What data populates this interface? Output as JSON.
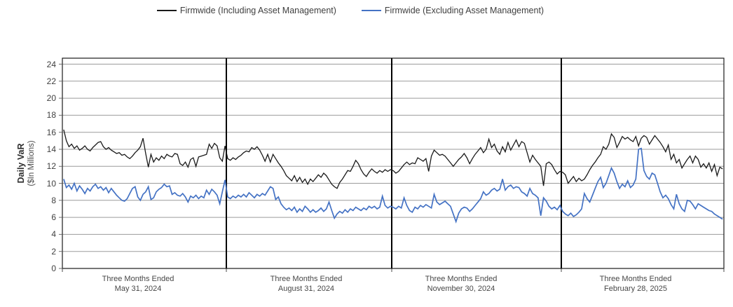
{
  "legend": {
    "items": [
      {
        "label": "Firmwide (Including Asset Management)",
        "color": "#1a1a1a"
      },
      {
        "label": "Firmwide (Excluding Asset Management)",
        "color": "#4472c4"
      }
    ]
  },
  "chart_data": {
    "type": "line",
    "title": "",
    "y_axis_title": "Daily VaR",
    "y_axis_subtitle": "($In Millions)",
    "ylabel": "Daily VaR ($In Millions)",
    "y_ticks": [
      0,
      2,
      4,
      6,
      8,
      10,
      12,
      14,
      16,
      18,
      20,
      22,
      24
    ],
    "ylim": [
      0,
      24.7
    ],
    "grid": true,
    "legend_position": "top-center",
    "colors": {
      "including_am": "#1a1a1a",
      "excluding_am": "#4472c4"
    },
    "quarters": [
      {
        "label_line1": "Three Months Ended",
        "label_line2": "May 31, 2024",
        "including_am": [
          16.3,
          15.0,
          14.3,
          14.6,
          14.1,
          14.4,
          13.9,
          14.1,
          14.4,
          14.0,
          13.8,
          14.2,
          14.5,
          14.8,
          14.9,
          14.3,
          14.0,
          14.2,
          13.9,
          13.7,
          13.5,
          13.6,
          13.3,
          13.4,
          13.1,
          12.9,
          13.2,
          13.6,
          13.9,
          14.3,
          15.3,
          13.5,
          11.9,
          13.4,
          12.5,
          13.0,
          12.7,
          13.2,
          12.9,
          13.4,
          13.2,
          13.1,
          13.5,
          13.4,
          12.3,
          12.1,
          12.5,
          11.9,
          12.8,
          13.0,
          12.0,
          13.1,
          13.2,
          13.3,
          13.4,
          14.6,
          14.1,
          14.7,
          14.4,
          13.0,
          12.6,
          14.4
        ],
        "excluding_am": [
          10.5,
          9.5,
          9.8,
          9.3,
          10.0,
          9.1,
          9.7,
          9.3,
          8.8,
          9.4,
          9.1,
          9.6,
          9.9,
          9.4,
          9.6,
          9.2,
          9.5,
          8.9,
          9.4,
          9.0,
          8.6,
          8.3,
          8.0,
          7.9,
          8.2,
          8.8,
          9.4,
          9.6,
          8.4,
          8.0,
          8.7,
          9.0,
          9.6,
          8.1,
          8.3,
          9.0,
          9.3,
          9.5,
          9.9,
          9.6,
          9.7,
          8.7,
          8.9,
          8.6,
          8.5,
          8.8,
          8.4,
          7.8,
          8.5,
          8.3,
          8.6,
          8.2,
          8.5,
          8.3,
          9.2,
          8.7,
          9.3,
          9.0,
          8.6,
          7.6,
          9.0,
          10.4
        ]
      },
      {
        "label_line1": "Three Months Ended",
        "label_line2": "August 31, 2024",
        "including_am": [
          12.9,
          12.7,
          13.0,
          12.8,
          13.1,
          13.3,
          13.6,
          13.8,
          13.7,
          14.2,
          14.0,
          14.3,
          13.9,
          13.3,
          12.6,
          13.4,
          12.5,
          13.4,
          12.9,
          12.4,
          12.0,
          11.5,
          10.9,
          10.6,
          10.3,
          10.9,
          10.2,
          10.7,
          10.1,
          10.5,
          9.9,
          10.5,
          10.2,
          10.6,
          11.0,
          10.7,
          11.2,
          10.9,
          10.4,
          9.9,
          9.6,
          9.4,
          10.1,
          10.5,
          11.0,
          11.5,
          11.4,
          12.0,
          12.7,
          12.3,
          11.6,
          11.1,
          10.8,
          11.3,
          11.7,
          11.4,
          11.2,
          11.5,
          11.3,
          11.6,
          11.4,
          11.6
        ],
        "excluding_am": [
          8.4,
          8.2,
          8.5,
          8.3,
          8.6,
          8.4,
          8.7,
          8.4,
          8.9,
          8.6,
          8.3,
          8.7,
          8.5,
          8.8,
          8.6,
          9.1,
          9.6,
          9.4,
          8.1,
          8.4,
          7.6,
          7.2,
          6.9,
          7.1,
          6.8,
          7.2,
          6.6,
          7.0,
          6.7,
          7.3,
          7.0,
          6.6,
          6.9,
          6.6,
          6.8,
          7.1,
          6.7,
          7.0,
          7.8,
          6.8,
          5.9,
          6.4,
          6.7,
          6.5,
          6.9,
          6.6,
          7.0,
          6.8,
          7.2,
          7.0,
          6.8,
          7.1,
          6.9,
          7.3,
          7.1,
          7.3,
          7.0,
          7.2,
          8.5,
          7.4,
          7.1,
          7.3
        ]
      },
      {
        "label_line1": "Three Months Ended",
        "label_line2": "November 30, 2024",
        "including_am": [
          11.5,
          11.2,
          11.4,
          11.8,
          12.2,
          12.5,
          12.2,
          12.4,
          12.3,
          13.0,
          12.8,
          12.6,
          12.9,
          11.4,
          13.2,
          13.9,
          13.6,
          13.3,
          13.4,
          13.2,
          12.8,
          12.4,
          12.0,
          12.4,
          12.8,
          13.1,
          13.5,
          13.0,
          12.3,
          12.9,
          13.4,
          13.8,
          14.2,
          13.6,
          14.0,
          15.2,
          14.2,
          14.6,
          13.8,
          13.4,
          14.3,
          13.7,
          14.8,
          13.9,
          14.5,
          15.1,
          14.3,
          14.9,
          14.7,
          13.6,
          12.5,
          13.3,
          12.8,
          12.4,
          12.0,
          9.7,
          12.3,
          12.5,
          12.2,
          11.6,
          11.1,
          11.4
        ],
        "excluding_am": [
          7.2,
          7.0,
          7.3,
          7.1,
          8.3,
          7.4,
          6.8,
          6.6,
          7.2,
          7.0,
          7.4,
          7.2,
          7.5,
          7.3,
          7.1,
          8.7,
          7.8,
          7.5,
          7.7,
          7.9,
          7.6,
          7.3,
          6.4,
          5.5,
          6.5,
          7.0,
          7.2,
          7.1,
          6.7,
          7.0,
          7.4,
          7.8,
          8.2,
          9.0,
          8.6,
          8.8,
          9.2,
          9.4,
          9.1,
          9.3,
          10.5,
          9.2,
          9.6,
          9.8,
          9.4,
          9.6,
          9.5,
          9.0,
          8.8,
          8.5,
          9.4,
          8.8,
          8.6,
          8.3,
          6.2,
          8.3,
          7.9,
          7.3,
          7.0,
          7.2,
          6.9,
          7.4
        ]
      },
      {
        "label_line1": "Three Months Ended",
        "label_line2": "February 28, 2025",
        "including_am": [
          11.3,
          11.0,
          10.0,
          10.4,
          10.8,
          10.2,
          10.6,
          10.3,
          10.5,
          11.0,
          11.6,
          12.1,
          12.5,
          13.0,
          13.4,
          14.3,
          14.0,
          14.6,
          15.8,
          15.4,
          14.2,
          14.8,
          15.5,
          15.2,
          15.4,
          15.1,
          14.9,
          15.5,
          14.4,
          15.3,
          15.6,
          15.4,
          14.6,
          15.1,
          15.6,
          15.2,
          14.8,
          14.3,
          13.7,
          14.5,
          12.8,
          13.4,
          12.4,
          12.8,
          11.8,
          12.3,
          12.8,
          13.2,
          12.4,
          13.2,
          12.8,
          11.9,
          12.3,
          11.8,
          12.4,
          11.4,
          12.2,
          10.9,
          11.9,
          11.7
        ],
        "excluding_am": [
          6.7,
          6.4,
          6.2,
          6.5,
          6.1,
          6.3,
          6.6,
          7.0,
          8.8,
          8.2,
          7.8,
          8.6,
          9.4,
          10.2,
          10.7,
          9.5,
          10.0,
          10.9,
          11.8,
          11.2,
          10.2,
          9.4,
          9.9,
          9.6,
          10.3,
          9.5,
          9.8,
          10.5,
          14.0,
          14.1,
          11.5,
          10.8,
          10.5,
          11.2,
          11.0,
          10.0,
          9.0,
          8.3,
          8.6,
          8.2,
          7.5,
          7.0,
          8.7,
          7.6,
          7.0,
          6.7,
          8.0,
          7.9,
          7.5,
          7.0,
          7.6,
          7.4,
          7.2,
          7.0,
          6.8,
          6.7,
          6.4,
          6.2,
          6.0,
          5.8
        ]
      }
    ]
  }
}
